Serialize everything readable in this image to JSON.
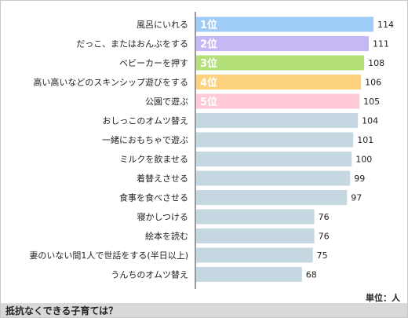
{
  "chart_data": {
    "type": "bar",
    "orientation": "horizontal",
    "categories": [
      "風呂にいれる",
      "だっこ、またはおんぶをする",
      "ベビーカーを押す",
      "高い高いなどのスキンシップ遊びをする",
      "公園で遊ぶ",
      "おしっこのオムツ替え",
      "一緒におもちゃで遊ぶ",
      "ミルクを飲ませる",
      "着替えさせる",
      "食事を食べさせる",
      "寝かしつける",
      "絵本を読む",
      "妻のいない間1人で世話をする(半日以上)",
      "うんちのオムツ替え"
    ],
    "values": [
      114,
      111,
      108,
      106,
      105,
      104,
      101,
      100,
      99,
      97,
      76,
      76,
      75,
      68
    ],
    "ranks": [
      "1位",
      "2位",
      "3位",
      "4位",
      "5位",
      "",
      "",
      "",
      "",
      "",
      "",
      "",
      "",
      ""
    ],
    "colors": [
      "#9fcbf7",
      "#c6b8f5",
      "#b4e07a",
      "#fdd27e",
      "#ffc9d7",
      "#c5d8e2",
      "#c5d8e2",
      "#c5d8e2",
      "#c5d8e2",
      "#c5d8e2",
      "#c5d8e2",
      "#c5d8e2",
      "#c5d8e2",
      "#c5d8e2"
    ],
    "xlim": [
      0,
      114
    ],
    "grid": false,
    "title": "抵抗なくできる子育ては？",
    "unit_label": "単位：人"
  }
}
